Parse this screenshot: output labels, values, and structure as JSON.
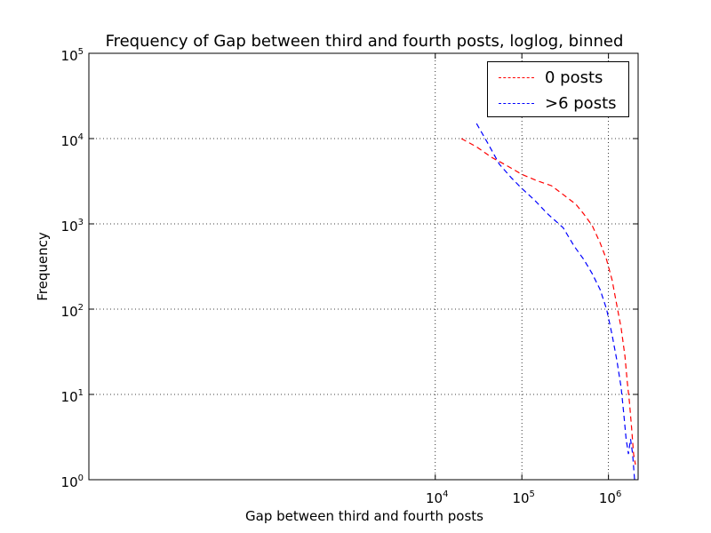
{
  "chart_data": {
    "type": "line",
    "title": "Frequency of Gap between third and fourth posts, loglog, binned",
    "xlabel": "Gap between third and fourth posts",
    "ylabel": "Frequency",
    "xscale": "log",
    "yscale": "log",
    "xlim": [
      1,
      2200000
    ],
    "ylim": [
      1,
      100000
    ],
    "grid": true,
    "legend_position": "top-right",
    "x_ticks": [
      {
        "value": 10000,
        "base": "10",
        "exp": "4"
      },
      {
        "value": 100000,
        "base": "10",
        "exp": "5"
      },
      {
        "value": 1000000,
        "base": "10",
        "exp": "6"
      }
    ],
    "y_ticks": [
      {
        "value": 1,
        "base": "10",
        "exp": "0"
      },
      {
        "value": 10,
        "base": "10",
        "exp": "1"
      },
      {
        "value": 100,
        "base": "10",
        "exp": "2"
      },
      {
        "value": 1000,
        "base": "10",
        "exp": "3"
      },
      {
        "value": 10000,
        "base": "10",
        "exp": "4"
      },
      {
        "value": 100000,
        "base": "10",
        "exp": "5"
      }
    ],
    "series": [
      {
        "name": "0 posts",
        "color": "#ff0000",
        "x": [
          20000,
          30000,
          45000,
          65000,
          100000,
          150000,
          220000,
          320000,
          420000,
          520000,
          650000,
          800000,
          950000,
          1100000,
          1250000,
          1400000,
          1550000,
          1650000,
          1750000,
          1850000,
          1950000,
          2050000
        ],
        "y": [
          10000,
          8000,
          6000,
          4900,
          3800,
          3200,
          2800,
          2100,
          1700,
          1300,
          950,
          600,
          380,
          220,
          110,
          60,
          28,
          14,
          8,
          4,
          2,
          1.5
        ]
      },
      {
        "name": ">6 posts",
        "color": "#0000ff",
        "x": [
          30000,
          40000,
          55000,
          75000,
          100000,
          140000,
          200000,
          300000,
          400000,
          520000,
          650000,
          800000,
          950000,
          1100000,
          1250000,
          1400000,
          1500000,
          1600000,
          1700000,
          1800000,
          1900000,
          2000000
        ],
        "y": [
          15000,
          9000,
          5000,
          3500,
          2600,
          1900,
          1300,
          900,
          550,
          380,
          260,
          170,
          100,
          50,
          25,
          12,
          6,
          3,
          2,
          3,
          2,
          1
        ]
      }
    ]
  }
}
